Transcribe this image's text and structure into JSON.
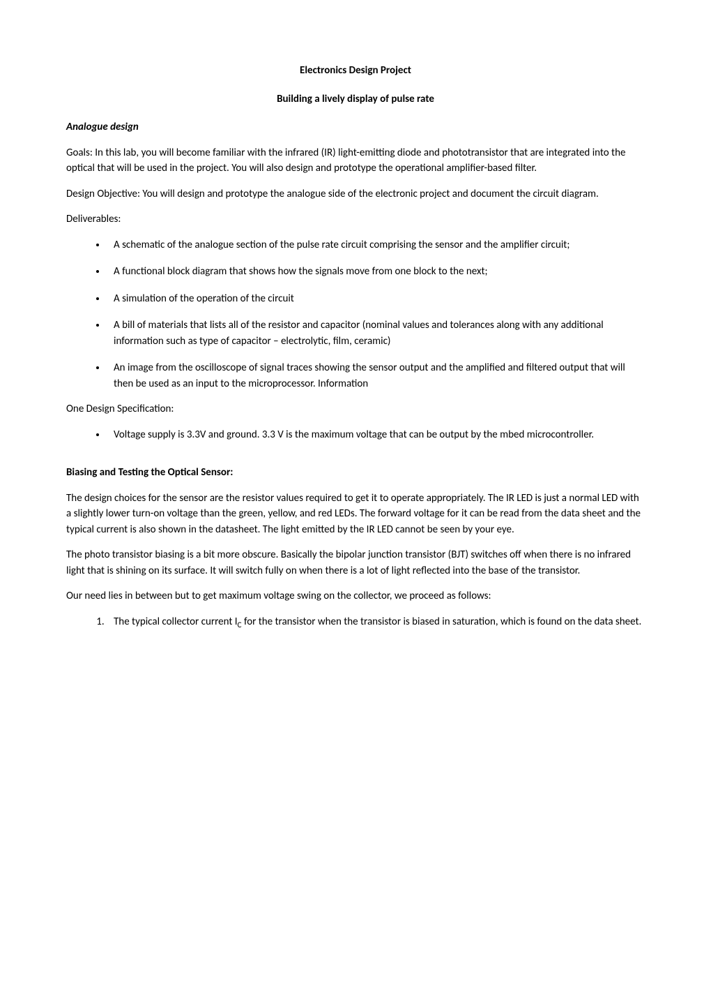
{
  "title": "Electronics Design Project",
  "subtitle": "Building a lively display of pulse rate",
  "section_analogue": {
    "heading": "Analogue design",
    "goals": "Goals:  In this lab, you will become familiar with the infrared (IR) light-emitting diode and phototransistor that are integrated into the optical that will be used in the project.  You will also design and prototype the operational amplifier-based filter.",
    "design_objective": "Design Objective:  You will design and prototype the analogue side of the electronic project and document the circuit diagram.",
    "deliverables_label": "Deliverables:",
    "deliverables": [
      "A schematic of the analogue section of the pulse rate circuit comprising the sensor and the amplifier circuit;",
      "A functional block diagram that shows how the signals move from one block to the next;",
      "A simulation of the operation of the circuit",
      "A bill of materials that lists all of the resistor and capacitor (nominal values and tolerances along with any additional information such as type of capacitor – electrolytic, film, ceramic)",
      "An image from the oscilloscope of signal traces showing the sensor output and the amplified and filtered output that will then be used as an input to the microprocessor. Information"
    ],
    "design_spec_label": "One Design Specification:",
    "design_specs": [
      "Voltage supply is 3.3V and ground. 3.3 V is the maximum voltage that can be output by the mbed microcontroller."
    ]
  },
  "section_biasing": {
    "heading": "Biasing and Testing the Optical Sensor:",
    "para1": "The design choices for the sensor are the resistor values required to get it to operate appropriately. The IR LED is just a normal LED with a slightly lower turn-on voltage than the green, yellow, and red LEDs.  The forward voltage for it can be read from the data sheet and the typical current is also shown in the datasheet. The light emitted by the IR LED cannot be seen by your eye.",
    "para2": "The photo transistor biasing is a bit more obscure. Basically the bipolar junction transistor (BJT) switches off when there is no infrared light that is shining on its surface.  It will switch fully on when there is a lot of light reflected into the base of the transistor.",
    "para3": "Our need lies in between but to get maximum voltage swing on the collector, we proceed as follows:",
    "step1_prefix": "The typical collector current I",
    "step1_sub": "C",
    "step1_suffix": " for the transistor when the transistor is biased in saturation, which is found on the data sheet."
  }
}
